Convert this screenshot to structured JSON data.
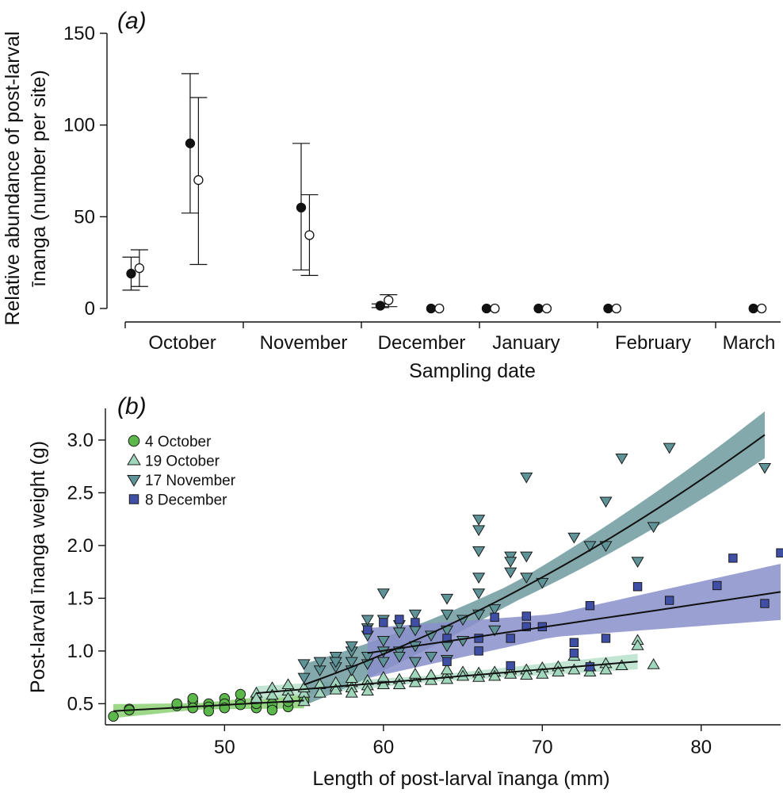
{
  "chart_data": [
    {
      "type": "scatter",
      "panel_label": "(a)",
      "title": "",
      "xlabel": "Sampling date",
      "ylabel_line1": "Relative abundance of post-larval",
      "ylabel_line2": "īnanga (number per site)",
      "ylim": [
        0,
        150
      ],
      "yticks": [
        0,
        50,
        100,
        150
      ],
      "months": [
        "October",
        "November",
        "December",
        "January",
        "February",
        "March"
      ],
      "series": [
        {
          "name": "filled",
          "points": [
            {
              "slot": 0.05,
              "y": 19,
              "lo": 10,
              "hi": 28
            },
            {
              "slot": 0.55,
              "y": 90,
              "lo": 52,
              "hi": 128
            },
            {
              "slot": 1.49,
              "y": 55,
              "lo": 21,
              "hi": 90
            },
            {
              "slot": 2.16,
              "y": 1.5,
              "lo": 0.5,
              "hi": 2.5
            },
            {
              "slot": 2.59,
              "y": 0,
              "lo": 0,
              "hi": 0
            },
            {
              "slot": 3.06,
              "y": 0,
              "lo": 0,
              "hi": 0
            },
            {
              "slot": 3.5,
              "y": 0,
              "lo": 0,
              "hi": 0
            },
            {
              "slot": 4.09,
              "y": 0,
              "lo": 0,
              "hi": 0
            },
            {
              "slot": 5.32,
              "y": 0,
              "lo": 0,
              "hi": 0
            }
          ]
        },
        {
          "name": "open",
          "points": [
            {
              "slot": 0.12,
              "y": 22,
              "lo": 12,
              "hi": 32
            },
            {
              "slot": 0.62,
              "y": 70,
              "lo": 24,
              "hi": 115
            },
            {
              "slot": 1.56,
              "y": 40,
              "lo": 18,
              "hi": 62
            },
            {
              "slot": 2.23,
              "y": 4.5,
              "lo": 1,
              "hi": 7.5
            },
            {
              "slot": 2.66,
              "y": 0,
              "lo": 0,
              "hi": 0
            },
            {
              "slot": 3.13,
              "y": 0,
              "lo": 0,
              "hi": 0
            },
            {
              "slot": 3.57,
              "y": 0,
              "lo": 0,
              "hi": 0
            },
            {
              "slot": 4.16,
              "y": 0,
              "lo": 0,
              "hi": 0
            },
            {
              "slot": 5.39,
              "y": 0,
              "lo": 0,
              "hi": 0
            }
          ]
        }
      ]
    },
    {
      "type": "scatter",
      "panel_label": "(b)",
      "title": "",
      "xlabel": "Length of post-larval īnanga (mm)",
      "ylabel": "Post-larval īnanga weight (g)",
      "xlim": [
        42.5,
        85
      ],
      "ylim": [
        0.3,
        3.3
      ],
      "xticks": [
        50,
        60,
        70,
        80
      ],
      "yticks": [
        "0.5",
        "1.0",
        "1.5",
        "2.0",
        "2.5",
        "3.0"
      ],
      "legend_position": "top-left",
      "series": [
        {
          "name": "4 October",
          "marker": "circle",
          "color": "#5cb84a",
          "band_color": "#8cd174",
          "fit": {
            "x_min": 43,
            "x_max": 55,
            "y_start": 0.43,
            "y_end": 0.53,
            "band": 0.05
          },
          "points": [
            [
              43,
              0.38
            ],
            [
              44,
              0.45
            ],
            [
              44,
              0.44
            ],
            [
              47,
              0.48
            ],
            [
              47,
              0.5
            ],
            [
              48,
              0.52
            ],
            [
              48,
              0.55
            ],
            [
              48,
              0.46
            ],
            [
              49,
              0.5
            ],
            [
              49,
              0.47
            ],
            [
              49,
              0.43
            ],
            [
              50,
              0.55
            ],
            [
              50,
              0.5
            ],
            [
              50,
              0.46
            ],
            [
              51,
              0.52
            ],
            [
              51,
              0.59
            ],
            [
              51,
              0.49
            ],
            [
              52,
              0.53
            ],
            [
              52,
              0.46
            ],
            [
              52,
              0.5
            ],
            [
              53,
              0.46
            ],
            [
              53,
              0.5
            ],
            [
              53,
              0.44
            ],
            [
              54,
              0.47
            ],
            [
              54,
              0.52
            ],
            [
              55,
              0.53
            ]
          ]
        },
        {
          "name": "19 October",
          "marker": "triangle-up",
          "color": "#9fd6bc",
          "band_color": "#b7e1cd",
          "fit": {
            "x_min": 52,
            "x_max": 76,
            "y_start": 0.6,
            "y_end": 0.9,
            "band": 0.05
          },
          "points": [
            [
              52,
              0.6
            ],
            [
              52,
              0.55
            ],
            [
              53,
              0.65
            ],
            [
              53,
              0.58
            ],
            [
              54,
              0.62
            ],
            [
              54,
              0.55
            ],
            [
              54,
              0.68
            ],
            [
              55,
              0.6
            ],
            [
              55,
              0.65
            ],
            [
              55,
              0.52
            ],
            [
              56,
              0.68
            ],
            [
              56,
              0.6
            ],
            [
              57,
              0.66
            ],
            [
              57,
              0.7
            ],
            [
              57,
              0.63
            ],
            [
              58,
              0.7
            ],
            [
              58,
              0.65
            ],
            [
              58,
              0.6
            ],
            [
              58,
              0.74
            ],
            [
              59,
              0.72
            ],
            [
              59,
              0.67
            ],
            [
              59,
              0.62
            ],
            [
              60,
              0.72
            ],
            [
              60,
              0.68
            ],
            [
              60,
              0.75
            ],
            [
              61,
              0.73
            ],
            [
              61,
              0.68
            ],
            [
              62,
              0.75
            ],
            [
              62,
              0.7
            ],
            [
              62,
              0.78
            ],
            [
              63,
              0.72
            ],
            [
              63,
              0.77
            ],
            [
              64,
              0.78
            ],
            [
              64,
              0.73
            ],
            [
              64,
              0.82
            ],
            [
              65,
              0.8
            ],
            [
              65,
              0.76
            ],
            [
              66,
              0.79
            ],
            [
              66,
              0.75
            ],
            [
              67,
              0.8
            ],
            [
              67,
              0.76
            ],
            [
              68,
              0.82
            ],
            [
              68,
              0.78
            ],
            [
              69,
              0.82
            ],
            [
              69,
              0.77
            ],
            [
              70,
              0.84
            ],
            [
              70,
              0.78
            ],
            [
              71,
              0.85
            ],
            [
              71,
              0.8
            ],
            [
              72,
              0.95
            ],
            [
              72,
              0.82
            ],
            [
              73,
              0.85
            ],
            [
              73,
              0.8
            ],
            [
              74,
              0.88
            ],
            [
              74,
              0.82
            ],
            [
              75,
              0.86
            ],
            [
              76,
              1.1
            ],
            [
              76,
              1.05
            ],
            [
              77,
              0.87
            ]
          ]
        },
        {
          "name": "17 November",
          "marker": "triangle-down",
          "color": "#5e9498",
          "band_color": "#6f9a9e",
          "fit": {
            "x_min": 55,
            "x_max": 84,
            "y_start": 0.68,
            "y_end": 3.05,
            "band": 0.15
          },
          "points": [
            [
              55,
              0.75
            ],
            [
              55,
              0.88
            ],
            [
              56,
              0.82
            ],
            [
              56,
              0.9
            ],
            [
              57,
              0.85
            ],
            [
              57,
              0.95
            ],
            [
              57,
              0.9
            ],
            [
              58,
              0.9
            ],
            [
              58,
              1.0
            ],
            [
              58,
              1.05
            ],
            [
              58,
              0.82
            ],
            [
              59,
              1.15
            ],
            [
              59,
              1.22
            ],
            [
              59,
              0.95
            ],
            [
              59,
              1.3
            ],
            [
              59,
              0.88
            ],
            [
              60,
              1.55
            ],
            [
              60,
              1.3
            ],
            [
              60,
              1.1
            ],
            [
              60,
              1.0
            ],
            [
              60,
              0.9
            ],
            [
              61,
              1.25
            ],
            [
              61,
              1.18
            ],
            [
              61,
              1.0
            ],
            [
              61,
              0.95
            ],
            [
              62,
              1.35
            ],
            [
              62,
              1.2
            ],
            [
              62,
              1.05
            ],
            [
              62,
              0.9
            ],
            [
              63,
              1.15
            ],
            [
              63,
              0.95
            ],
            [
              64,
              1.5
            ],
            [
              64,
              1.35
            ],
            [
              64,
              1.2
            ],
            [
              64,
              1.05
            ],
            [
              64,
              0.92
            ],
            [
              65,
              1.3
            ],
            [
              65,
              1.1
            ],
            [
              66,
              2.25
            ],
            [
              66,
              2.15
            ],
            [
              66,
              1.95
            ],
            [
              66,
              1.7
            ],
            [
              66,
              1.55
            ],
            [
              66,
              1.35
            ],
            [
              67,
              1.4
            ],
            [
              67,
              1.2
            ],
            [
              68,
              1.9
            ],
            [
              68,
              1.75
            ],
            [
              68,
              1.85
            ],
            [
              69,
              2.65
            ],
            [
              69,
              1.9
            ],
            [
              69,
              1.7
            ],
            [
              70,
              1.65
            ],
            [
              72,
              2.08
            ],
            [
              73,
              2.0
            ],
            [
              74,
              2.42
            ],
            [
              74,
              2.0
            ],
            [
              75,
              2.83
            ],
            [
              76,
              1.85
            ],
            [
              77,
              2.18
            ],
            [
              78,
              2.93
            ],
            [
              84,
              2.74
            ]
          ]
        },
        {
          "name": "8 December",
          "marker": "square",
          "color": "#3f4fa6",
          "band_color": "#8a8fcb",
          "fit": {
            "x_min": 59,
            "x_max": 85,
            "y_start": 0.98,
            "y_end": 1.56,
            "band": 0.18
          },
          "points": [
            [
              59,
              1.2
            ],
            [
              60,
              1.27
            ],
            [
              61,
              1.3
            ],
            [
              62,
              1.27
            ],
            [
              64,
              1.12
            ],
            [
              64,
              0.9
            ],
            [
              66,
              1.0
            ],
            [
              66,
              1.12
            ],
            [
              67,
              1.32
            ],
            [
              68,
              1.12
            ],
            [
              68,
              0.86
            ],
            [
              69,
              1.33
            ],
            [
              69,
              1.23
            ],
            [
              70,
              1.23
            ],
            [
              72,
              1.08
            ],
            [
              72,
              0.98
            ],
            [
              73,
              1.43
            ],
            [
              73,
              0.85
            ],
            [
              74,
              1.12
            ],
            [
              76,
              1.61
            ],
            [
              78,
              1.48
            ],
            [
              81,
              1.62
            ],
            [
              82,
              1.88
            ],
            [
              84,
              1.45
            ],
            [
              85,
              1.93
            ]
          ]
        }
      ]
    }
  ]
}
